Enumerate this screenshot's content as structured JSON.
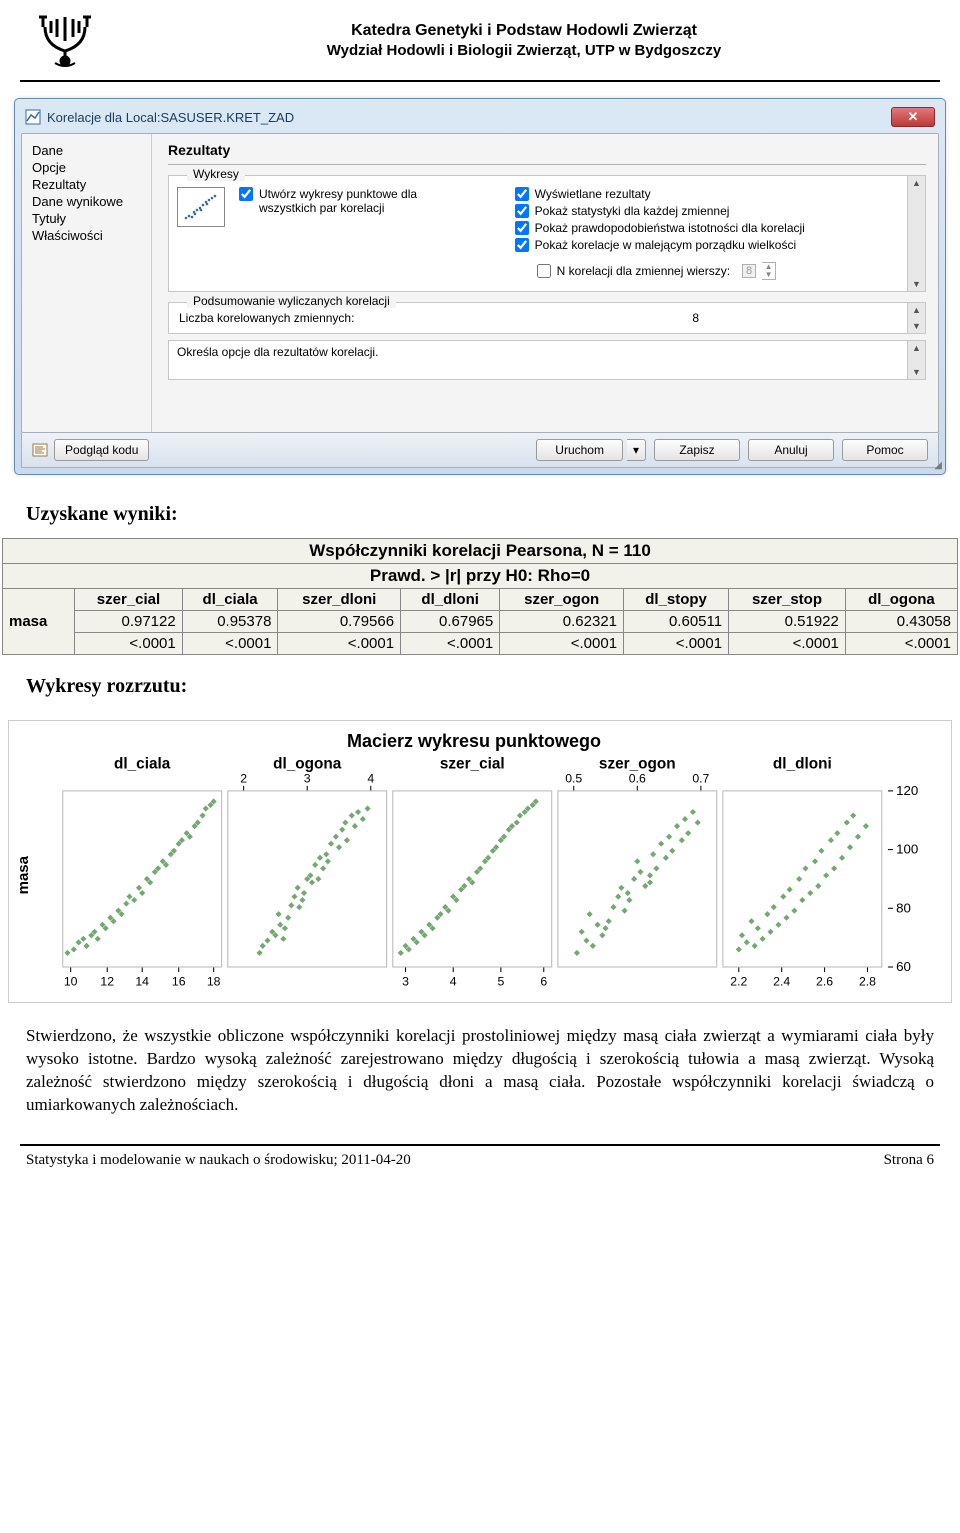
{
  "header": {
    "line1": "Katedra Genetyki i Podstaw Hodowli Zwierząt",
    "line2": "Wydział Hodowli i Biologii Zwierząt, UTP w Bydgoszczy"
  },
  "window": {
    "title": "Korelacje dla Local:SASUSER.KRET_ZAD",
    "close_label": "✕",
    "sidebar": [
      "Dane",
      "Opcje",
      "Rezultaty",
      "Dane wynikowe",
      "Tytuły",
      "Właściwości"
    ],
    "sidebar_selected": 2,
    "heading": "Rezultaty",
    "group1_label": "Wykresy",
    "left_check": {
      "checked": true,
      "label": "Utwórz wykresy punktowe dla wszystkich par korelacji"
    },
    "right_checks": [
      {
        "checked": true,
        "label": "Wyświetlane rezultaty"
      },
      {
        "checked": true,
        "label": "Pokaż statystyki dla każdej zmiennej"
      },
      {
        "checked": true,
        "label": "Pokaż prawdopodobieństwa istotności dla korelacji"
      },
      {
        "checked": true,
        "label": "Pokaż korelacje w malejącym porządku wielkości"
      }
    ],
    "n_check": {
      "checked": false,
      "label": "N korelacji dla zmiennej wierszy:",
      "value": "8"
    },
    "summary_label": "Podsumowanie wyliczanych korelacji",
    "summary_row": {
      "label": "Liczba korelowanych zmiennych:",
      "value": "8"
    },
    "desc": "Określa opcje dla rezultatów korelacji.",
    "footer": {
      "code_preview": "Podgląd kodu",
      "buttons": [
        "Uruchom",
        "Zapisz",
        "Anuluj",
        "Pomoc"
      ]
    }
  },
  "doc": {
    "results_heading": "Uzyskane wyniki:",
    "scatter_heading": "Wykresy rozrzutu:",
    "paragraph": "Stwierdzono, że wszystkie obliczone współczynniki korelacji prostoliniowej między masą ciała zwierząt a wymiarami ciała były wysoko istotne. Bardzo wysoką zależność zarejestrowano między długością i szerokością tułowia a masą zwierząt. Wysoką zależność stwierdzono między szerokością i długością dłoni a masą ciała. Pozostałe współczynniki korelacji świadczą o umiarkowanych zależnościach."
  },
  "corr_table": {
    "caption1": "Współczynniki korelacji Pearsona, N = 110",
    "caption2": "Prawd. > |r| przy H0: Rho=0",
    "row_label": "masa",
    "cols": [
      "szer_cial",
      "dl_ciala",
      "szer_dloni",
      "dl_dloni",
      "szer_ogon",
      "dl_stopy",
      "szer_stop",
      "dl_ogona"
    ],
    "r": [
      "0.97122",
      "0.95378",
      "0.79566",
      "0.67965",
      "0.62321",
      "0.60511",
      "0.51922",
      "0.43058"
    ],
    "p": [
      "<.0001",
      "<.0001",
      "<.0001",
      "<.0001",
      "<.0001",
      "<.0001",
      "<.0001",
      "<.0001"
    ]
  },
  "matrix": {
    "title": "Macierz wykresu punktowego",
    "y_label": "masa",
    "panels": [
      "dl_ciala",
      "dl_ogona",
      "szer_cial",
      "szer_ogon",
      "dl_dloni"
    ],
    "panel_color": "#5a9957",
    "grid_color": "#b8b8b8",
    "text_color": "#000000",
    "background": "#ffffff",
    "y_ticks": [
      60,
      80,
      100,
      120
    ],
    "x_ticks": [
      [
        "10",
        "12",
        "14",
        "16",
        "18"
      ],
      [
        "2",
        "3",
        "4"
      ],
      [
        "3",
        "4",
        "5",
        "6"
      ],
      [
        "0.5",
        "0.6",
        "0.7"
      ],
      [
        "2.2",
        "2.4",
        "2.6",
        "2.8"
      ]
    ],
    "x_tick_pos": [
      [
        0.05,
        0.28,
        0.5,
        0.73,
        0.95
      ],
      [
        0.1,
        0.5,
        0.9
      ],
      [
        0.08,
        0.38,
        0.68,
        0.95
      ],
      [
        0.1,
        0.5,
        0.9
      ],
      [
        0.1,
        0.37,
        0.64,
        0.91
      ]
    ],
    "x_tick_placement": [
      "bottom",
      "top",
      "bottom",
      "top",
      "bottom"
    ],
    "points": [
      [
        [
          0.03,
          0.92
        ],
        [
          0.07,
          0.9
        ],
        [
          0.1,
          0.86
        ],
        [
          0.13,
          0.84
        ],
        [
          0.15,
          0.88
        ],
        [
          0.18,
          0.82
        ],
        [
          0.2,
          0.8
        ],
        [
          0.22,
          0.84
        ],
        [
          0.25,
          0.76
        ],
        [
          0.27,
          0.78
        ],
        [
          0.3,
          0.72
        ],
        [
          0.32,
          0.74
        ],
        [
          0.35,
          0.68
        ],
        [
          0.37,
          0.7
        ],
        [
          0.4,
          0.64
        ],
        [
          0.42,
          0.6
        ],
        [
          0.45,
          0.62
        ],
        [
          0.48,
          0.55
        ],
        [
          0.5,
          0.58
        ],
        [
          0.53,
          0.5
        ],
        [
          0.55,
          0.52
        ],
        [
          0.58,
          0.46
        ],
        [
          0.6,
          0.44
        ],
        [
          0.63,
          0.4
        ],
        [
          0.65,
          0.42
        ],
        [
          0.68,
          0.36
        ],
        [
          0.7,
          0.34
        ],
        [
          0.73,
          0.3
        ],
        [
          0.75,
          0.28
        ],
        [
          0.78,
          0.24
        ],
        [
          0.8,
          0.26
        ],
        [
          0.83,
          0.2
        ],
        [
          0.85,
          0.18
        ],
        [
          0.88,
          0.14
        ],
        [
          0.9,
          0.1
        ],
        [
          0.93,
          0.08
        ],
        [
          0.95,
          0.06
        ]
      ],
      [
        [
          0.2,
          0.92
        ],
        [
          0.25,
          0.85
        ],
        [
          0.22,
          0.88
        ],
        [
          0.28,
          0.8
        ],
        [
          0.3,
          0.82
        ],
        [
          0.33,
          0.76
        ],
        [
          0.35,
          0.84
        ],
        [
          0.32,
          0.7
        ],
        [
          0.38,
          0.72
        ],
        [
          0.4,
          0.65
        ],
        [
          0.36,
          0.78
        ],
        [
          0.42,
          0.6
        ],
        [
          0.45,
          0.66
        ],
        [
          0.44,
          0.55
        ],
        [
          0.48,
          0.58
        ],
        [
          0.5,
          0.5
        ],
        [
          0.47,
          0.62
        ],
        [
          0.52,
          0.48
        ],
        [
          0.55,
          0.42
        ],
        [
          0.53,
          0.52
        ],
        [
          0.58,
          0.38
        ],
        [
          0.6,
          0.44
        ],
        [
          0.57,
          0.5
        ],
        [
          0.62,
          0.36
        ],
        [
          0.65,
          0.3
        ],
        [
          0.63,
          0.4
        ],
        [
          0.68,
          0.26
        ],
        [
          0.7,
          0.32
        ],
        [
          0.72,
          0.22
        ],
        [
          0.75,
          0.28
        ],
        [
          0.74,
          0.18
        ],
        [
          0.78,
          0.14
        ],
        [
          0.8,
          0.2
        ],
        [
          0.82,
          0.12
        ],
        [
          0.85,
          0.16
        ],
        [
          0.88,
          0.1
        ]
      ],
      [
        [
          0.05,
          0.92
        ],
        [
          0.08,
          0.88
        ],
        [
          0.1,
          0.9
        ],
        [
          0.13,
          0.84
        ],
        [
          0.15,
          0.86
        ],
        [
          0.18,
          0.8
        ],
        [
          0.2,
          0.82
        ],
        [
          0.23,
          0.76
        ],
        [
          0.25,
          0.78
        ],
        [
          0.28,
          0.72
        ],
        [
          0.3,
          0.7
        ],
        [
          0.33,
          0.66
        ],
        [
          0.35,
          0.68
        ],
        [
          0.38,
          0.6
        ],
        [
          0.4,
          0.62
        ],
        [
          0.43,
          0.56
        ],
        [
          0.45,
          0.54
        ],
        [
          0.48,
          0.5
        ],
        [
          0.5,
          0.52
        ],
        [
          0.53,
          0.46
        ],
        [
          0.55,
          0.44
        ],
        [
          0.58,
          0.4
        ],
        [
          0.6,
          0.38
        ],
        [
          0.63,
          0.34
        ],
        [
          0.65,
          0.32
        ],
        [
          0.68,
          0.28
        ],
        [
          0.7,
          0.26
        ],
        [
          0.73,
          0.22
        ],
        [
          0.75,
          0.2
        ],
        [
          0.78,
          0.18
        ],
        [
          0.8,
          0.14
        ],
        [
          0.83,
          0.12
        ],
        [
          0.85,
          0.1
        ],
        [
          0.88,
          0.08
        ],
        [
          0.9,
          0.06
        ]
      ],
      [
        [
          0.12,
          0.92
        ],
        [
          0.18,
          0.85
        ],
        [
          0.15,
          0.8
        ],
        [
          0.22,
          0.88
        ],
        [
          0.25,
          0.76
        ],
        [
          0.28,
          0.82
        ],
        [
          0.2,
          0.7
        ],
        [
          0.32,
          0.74
        ],
        [
          0.35,
          0.66
        ],
        [
          0.3,
          0.78
        ],
        [
          0.38,
          0.6
        ],
        [
          0.42,
          0.68
        ],
        [
          0.4,
          0.55
        ],
        [
          0.45,
          0.62
        ],
        [
          0.48,
          0.5
        ],
        [
          0.44,
          0.58
        ],
        [
          0.52,
          0.46
        ],
        [
          0.55,
          0.54
        ],
        [
          0.5,
          0.4
        ],
        [
          0.58,
          0.48
        ],
        [
          0.6,
          0.36
        ],
        [
          0.62,
          0.44
        ],
        [
          0.65,
          0.3
        ],
        [
          0.58,
          0.52
        ],
        [
          0.68,
          0.38
        ],
        [
          0.7,
          0.26
        ],
        [
          0.72,
          0.34
        ],
        [
          0.75,
          0.2
        ],
        [
          0.78,
          0.28
        ],
        [
          0.8,
          0.16
        ],
        [
          0.82,
          0.24
        ],
        [
          0.85,
          0.12
        ],
        [
          0.88,
          0.18
        ]
      ],
      [
        [
          0.1,
          0.9
        ],
        [
          0.15,
          0.86
        ],
        [
          0.12,
          0.82
        ],
        [
          0.2,
          0.88
        ],
        [
          0.22,
          0.78
        ],
        [
          0.25,
          0.84
        ],
        [
          0.18,
          0.74
        ],
        [
          0.3,
          0.8
        ],
        [
          0.28,
          0.7
        ],
        [
          0.35,
          0.76
        ],
        [
          0.32,
          0.66
        ],
        [
          0.4,
          0.72
        ],
        [
          0.38,
          0.6
        ],
        [
          0.45,
          0.68
        ],
        [
          0.42,
          0.56
        ],
        [
          0.5,
          0.62
        ],
        [
          0.48,
          0.5
        ],
        [
          0.55,
          0.58
        ],
        [
          0.52,
          0.44
        ],
        [
          0.6,
          0.54
        ],
        [
          0.58,
          0.4
        ],
        [
          0.65,
          0.48
        ],
        [
          0.62,
          0.34
        ],
        [
          0.7,
          0.44
        ],
        [
          0.68,
          0.28
        ],
        [
          0.75,
          0.38
        ],
        [
          0.72,
          0.24
        ],
        [
          0.8,
          0.32
        ],
        [
          0.78,
          0.18
        ],
        [
          0.85,
          0.26
        ],
        [
          0.82,
          0.14
        ],
        [
          0.9,
          0.2
        ]
      ]
    ]
  },
  "footer": {
    "left": "Statystyka i modelowanie w naukach o środowisku; 2011-04-20",
    "right": "Strona 6"
  }
}
